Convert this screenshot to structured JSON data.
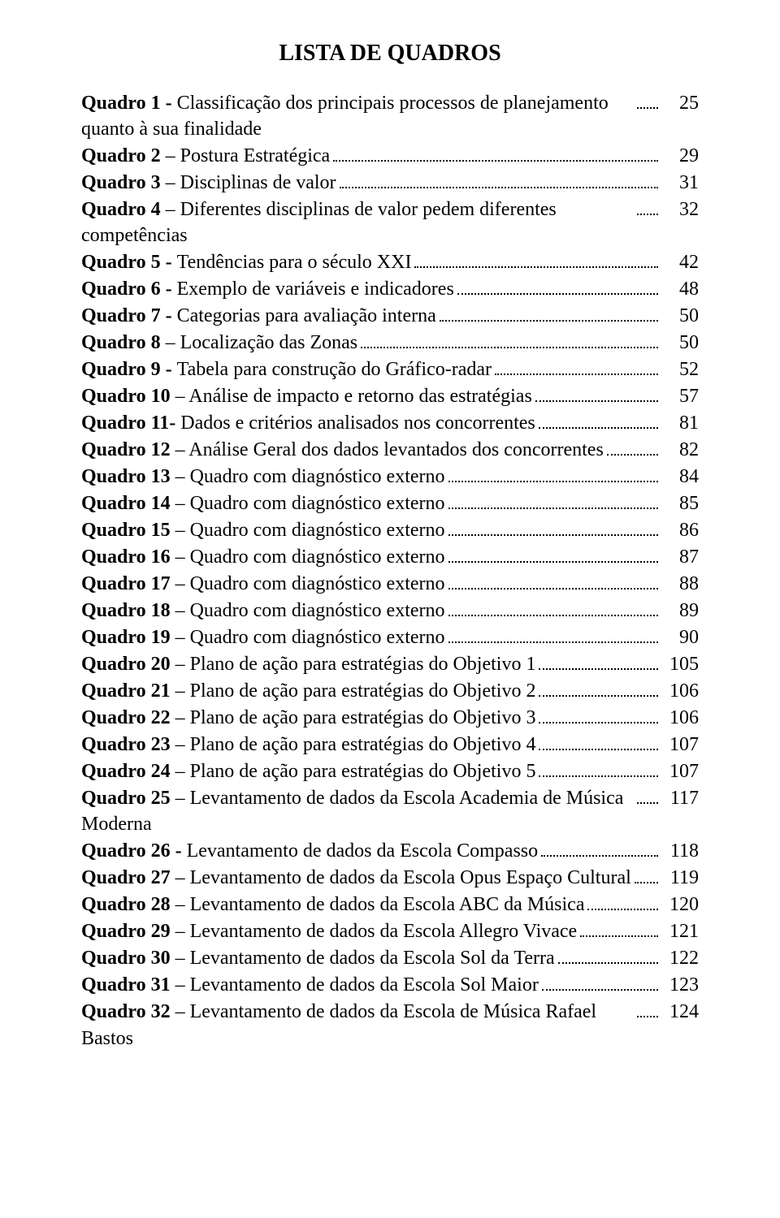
{
  "title": "LISTA DE QUADROS",
  "entries": [
    {
      "bold": "Quadro 1 - ",
      "rest": "Classificação dos principais processos de planejamento quanto à sua finalidade",
      "page": "25",
      "multi": true,
      "boldAll": false
    },
    {
      "bold": "Quadro 2 ",
      "rest": "Postura Estratégica",
      "page": "29",
      "sep": "–"
    },
    {
      "bold": "Quadro 3 ",
      "rest": "Disciplinas de valor",
      "page": "31",
      "sep": "–"
    },
    {
      "bold": "Quadro 4 ",
      "rest": "Diferentes disciplinas de valor pedem diferentes competências",
      "page": "32",
      "sep": "–",
      "multi": true
    },
    {
      "bold": "Quadro 5 - ",
      "rest": "Tendências para o século XXI",
      "page": "42"
    },
    {
      "bold": "Quadro 6 - ",
      "rest": "Exemplo de variáveis e indicadores",
      "page": "48"
    },
    {
      "bold": "Quadro 7 - ",
      "rest": "Categorias para avaliação interna",
      "page": "50"
    },
    {
      "bold": "Quadro 8 ",
      "rest": "Localização das Zonas",
      "page": "50",
      "sep": "–"
    },
    {
      "bold": "Quadro 9 - ",
      "rest": "Tabela para construção do Gráfico-radar",
      "page": "52"
    },
    {
      "bold": "Quadro 10 ",
      "rest": "Análise de impacto e retorno das estratégias",
      "page": "57",
      "sep": "–"
    },
    {
      "bold": "Quadro 11- ",
      "rest": "Dados e critérios analisados nos concorrentes",
      "page": "81"
    },
    {
      "bold": "Quadro 12 ",
      "rest": "Análise Geral dos dados levantados dos concorrentes",
      "page": "82",
      "sep": "–",
      "multi": true
    },
    {
      "bold": "Quadro 13 ",
      "rest": "Quadro com diagnóstico externo",
      "page": "84",
      "sep": "–"
    },
    {
      "bold": "Quadro 14 ",
      "rest": "Quadro com diagnóstico externo",
      "page": "85",
      "sep": "–"
    },
    {
      "bold": "Quadro 15 ",
      "rest": "Quadro com diagnóstico externo",
      "page": "86",
      "sep": "–"
    },
    {
      "bold": "Quadro 16 ",
      "rest": "Quadro com diagnóstico externo",
      "page": "87",
      "sep": "–"
    },
    {
      "bold": "Quadro 17 ",
      "rest": "Quadro com diagnóstico externo",
      "page": "88",
      "sep": "–"
    },
    {
      "bold": "Quadro 18 ",
      "rest": "Quadro com diagnóstico externo",
      "page": "89",
      "sep": "–"
    },
    {
      "bold": "Quadro 19 ",
      "rest": "Quadro com diagnóstico externo",
      "page": "90",
      "sep": "–"
    },
    {
      "bold": "Quadro 20 ",
      "rest": "Plano de ação para estratégias do Objetivo 1",
      "page": "105",
      "sep": "–"
    },
    {
      "bold": "Quadro 21 ",
      "rest": "Plano de ação para estratégias do Objetivo 2",
      "page": "106",
      "sep": "–"
    },
    {
      "bold": "Quadro 22 ",
      "rest": "Plano de ação para estratégias do Objetivo 3",
      "page": "106",
      "sep": "–"
    },
    {
      "bold": "Quadro 23 ",
      "rest": "Plano de ação para estratégias do Objetivo 4",
      "page": "107",
      "sep": "–"
    },
    {
      "bold": "Quadro 24 ",
      "rest": "Plano de ação para estratégias do Objetivo 5",
      "page": "107",
      "sep": "–"
    },
    {
      "bold": "Quadro 25 ",
      "rest": "Levantamento de dados da Escola Academia de Música Moderna",
      "page": "117",
      "sep": "–",
      "multi": true
    },
    {
      "bold": "Quadro 26 - ",
      "rest": "Levantamento de dados da Escola Compasso",
      "page": "118"
    },
    {
      "bold": "Quadro 27 ",
      "rest": "Levantamento de dados da Escola Opus Espaço Cultural",
      "page": "119",
      "sep": "–",
      "multi": true
    },
    {
      "bold": "Quadro 28 ",
      "rest": "Levantamento de dados da Escola ABC da Música",
      "page": "120",
      "sep": "–",
      "dotStyle": "."
    },
    {
      "bold": "Quadro 29 ",
      "rest": "Levantamento de dados da Escola Allegro Vivace",
      "page": "121",
      "sep": "–",
      "dotStyle": ".."
    },
    {
      "bold": "Quadro 30 ",
      "rest": "Levantamento de dados da Escola Sol da Terra",
      "page": "122",
      "sep": "–"
    },
    {
      "bold": "Quadro 31 ",
      "rest": "Levantamento de dados da Escola Sol Maior",
      "page": "123",
      "sep": "–"
    },
    {
      "bold": "Quadro 32 ",
      "rest": "Levantamento de dados da Escola de Música Rafael Bastos",
      "page": "124",
      "sep": "–",
      "multi": true
    }
  ]
}
